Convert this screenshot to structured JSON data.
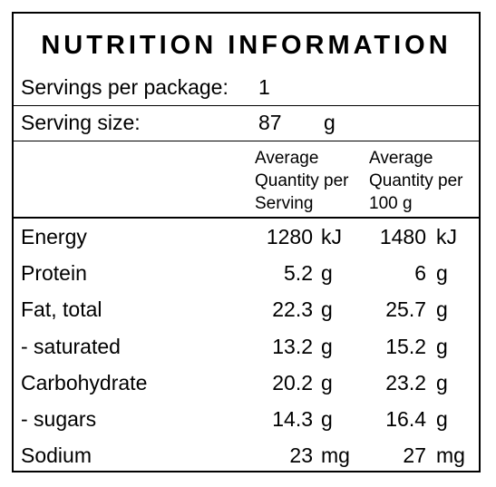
{
  "panel": {
    "title": "NUTRITION INFORMATION",
    "servings_label": "Servings per package:",
    "servings_value": "1",
    "serving_size_label": "Serving size:",
    "serving_size_value": "87",
    "serving_size_unit": "g"
  },
  "columns": {
    "per_serving": [
      "Average",
      "Quantity per",
      "Serving"
    ],
    "per_100g": [
      "Average",
      "Quantity per",
      "100 g"
    ]
  },
  "rows": [
    {
      "name": "Energy",
      "serving": "1280",
      "serving_unit": "kJ",
      "per100": "1480",
      "per100_unit": "kJ"
    },
    {
      "name": "Protein",
      "serving": "5.2",
      "serving_unit": "g",
      "per100": "6",
      "per100_unit": "g"
    },
    {
      "name": "Fat, total",
      "serving": "22.3",
      "serving_unit": "g",
      "per100": "25.7",
      "per100_unit": "g"
    },
    {
      "name": "- saturated",
      "serving": "13.2",
      "serving_unit": "g",
      "per100": "15.2",
      "per100_unit": "g"
    },
    {
      "name": "Carbohydrate",
      "serving": "20.2",
      "serving_unit": "g",
      "per100": "23.2",
      "per100_unit": "g"
    },
    {
      "name": "- sugars",
      "serving": "14.3",
      "serving_unit": "g",
      "per100": "16.4",
      "per100_unit": "g"
    },
    {
      "name": "Sodium",
      "serving": "23",
      "serving_unit": "mg",
      "per100": "27",
      "per100_unit": "mg"
    }
  ]
}
